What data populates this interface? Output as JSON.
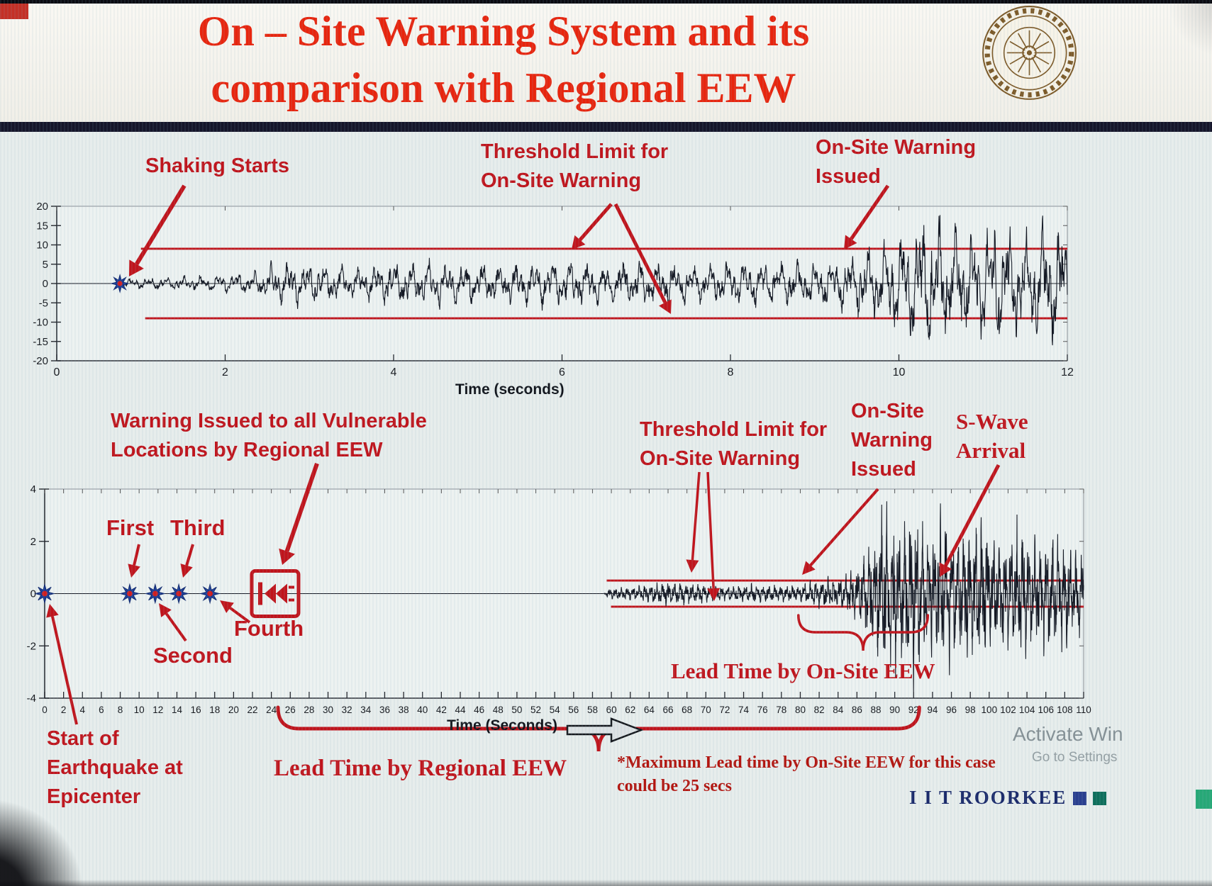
{
  "colors": {
    "title_red": "#e8250e",
    "annotation_red": "#c0141c",
    "note_red": "#b3150f",
    "trace_dark": "#131722",
    "star_blue": "#1d3f9b",
    "star_center_red": "#cf1f1f",
    "brand_navy": "#1b2a6b",
    "brand_square_blue": "#2a3f8f",
    "brand_square_teal": "#0f6f5c"
  },
  "header": {
    "title_line1": "On – Site Warning System and its",
    "title_line2": "comparison with Regional EEW"
  },
  "chart1": {
    "ann_shaking": "Shaking Starts",
    "ann_threshold_line1": "Threshold Limit for",
    "ann_threshold_line2": "On-Site Warning",
    "ann_issued_line1": "On-Site Warning",
    "ann_issued_line2": "Issued"
  },
  "chart2": {
    "ann_regional_line1": "Warning Issued to all Vulnerable",
    "ann_regional_line2": "Locations by Regional EEW",
    "ann_first": "First",
    "ann_third": "Third",
    "ann_second": "Second",
    "ann_fourth": "Fourth",
    "ann_start_line1": "Start of",
    "ann_start_line2": "Earthquake at",
    "ann_start_line3": "Epicenter",
    "ann_threshold_line1": "Threshold Limit for",
    "ann_threshold_line2": "On-Site Warning",
    "ann_issued_line1": "On-Site",
    "ann_issued_line2": "Warning",
    "ann_issued_line3": "Issued",
    "ann_swave_line1": "S-Wave",
    "ann_swave_line2": "Arrival",
    "lead_onsite": "Lead Time by On-Site EEW",
    "lead_regional": "Lead Time by Regional EEW",
    "note_line1": "*Maximum Lead time by On-Site EEW for this case",
    "note_line2": "could be 25 secs"
  },
  "footer": {
    "brand": "I I T ROORKEE",
    "watermark_line1": "Activate Win",
    "watermark_line2": "Go to Settings"
  },
  "chart_data": [
    {
      "type": "line",
      "title": "",
      "xlabel": "Time (seconds)",
      "ylabel": "",
      "xlim": [
        0,
        12
      ],
      "ylim": [
        -20,
        20
      ],
      "xticks": [
        0,
        2,
        4,
        6,
        8,
        10,
        12
      ],
      "yticks": [
        20,
        15,
        10,
        5,
        0,
        -5,
        -10,
        -15,
        -20
      ],
      "grid": false,
      "legend": false,
      "threshold_upper": 9,
      "threshold_lower": -9,
      "threshold_span": [
        1,
        12
      ],
      "shaking_start_x": 0.75,
      "onsite_warning_issued_x": 9.4,
      "series": [
        {
          "name": "ground-motion-seismogram",
          "envelope": [
            [
              0,
              0
            ],
            [
              0.72,
              0
            ],
            [
              0.8,
              1.2
            ],
            [
              1.2,
              1.6
            ],
            [
              1.8,
              2.2
            ],
            [
              2.3,
              2.8
            ],
            [
              2.6,
              5.5
            ],
            [
              3,
              6
            ],
            [
              3.4,
              4.5
            ],
            [
              4,
              5.5
            ],
            [
              4.6,
              6
            ],
            [
              5.2,
              5
            ],
            [
              5.8,
              6.5
            ],
            [
              6.4,
              5.5
            ],
            [
              7,
              6
            ],
            [
              7.6,
              5
            ],
            [
              8.2,
              6
            ],
            [
              8.8,
              5.5
            ],
            [
              9.2,
              6.5
            ],
            [
              9.5,
              8
            ],
            [
              9.8,
              11
            ],
            [
              10.1,
              15
            ],
            [
              10.4,
              18
            ],
            [
              10.8,
              14
            ],
            [
              11.2,
              17
            ],
            [
              11.5,
              13
            ],
            [
              11.8,
              16
            ],
            [
              12,
              14
            ]
          ]
        }
      ]
    },
    {
      "type": "line",
      "title": "",
      "xlabel": "Time (Seconds)",
      "ylabel": "",
      "xlim": [
        0,
        110
      ],
      "ylim": [
        -4,
        4
      ],
      "xtick_step": 2,
      "yticks": [
        4,
        2,
        0,
        -2,
        -4
      ],
      "grid": false,
      "legend": false,
      "threshold_upper": 0.5,
      "threshold_lower": -0.5,
      "threshold_span": [
        59.5,
        110
      ],
      "p_wave_markers": {
        "epicenter": 0,
        "first": 9,
        "second": 11.7,
        "third": 14.2,
        "fourth": 17.5
      },
      "regional_warning_x": 24.4,
      "onsite_warning_issued_x": 80,
      "s_wave_arrival_x": 93,
      "lead_time_onsite_span": [
        79.8,
        93.5
      ],
      "lead_time_regional_span": [
        24.7,
        92.6
      ],
      "max_onsite_lead_secs": 25,
      "series": [
        {
          "name": "ground-motion-seismogram",
          "envelope": [
            [
              0,
              0
            ],
            [
              59.2,
              0
            ],
            [
              59.6,
              0.18
            ],
            [
              61,
              0.25
            ],
            [
              63,
              0.3
            ],
            [
              66,
              0.45
            ],
            [
              69,
              0.35
            ],
            [
              72,
              0.3
            ],
            [
              75,
              0.35
            ],
            [
              78,
              0.3
            ],
            [
              80,
              0.35
            ],
            [
              82,
              0.5
            ],
            [
              84,
              0.6
            ],
            [
              86,
              1.0
            ],
            [
              87.5,
              2.0
            ],
            [
              89,
              3.4
            ],
            [
              90.5,
              2.6
            ],
            [
              92,
              3.2
            ],
            [
              93.5,
              2.4
            ],
            [
              95,
              3.0
            ],
            [
              97,
              2.2
            ],
            [
              99,
              2.8
            ],
            [
              101,
              2.0
            ],
            [
              103,
              2.5
            ],
            [
              105,
              1.8
            ],
            [
              107,
              2.2
            ],
            [
              109,
              1.6
            ],
            [
              110,
              1.8
            ]
          ]
        }
      ]
    }
  ]
}
